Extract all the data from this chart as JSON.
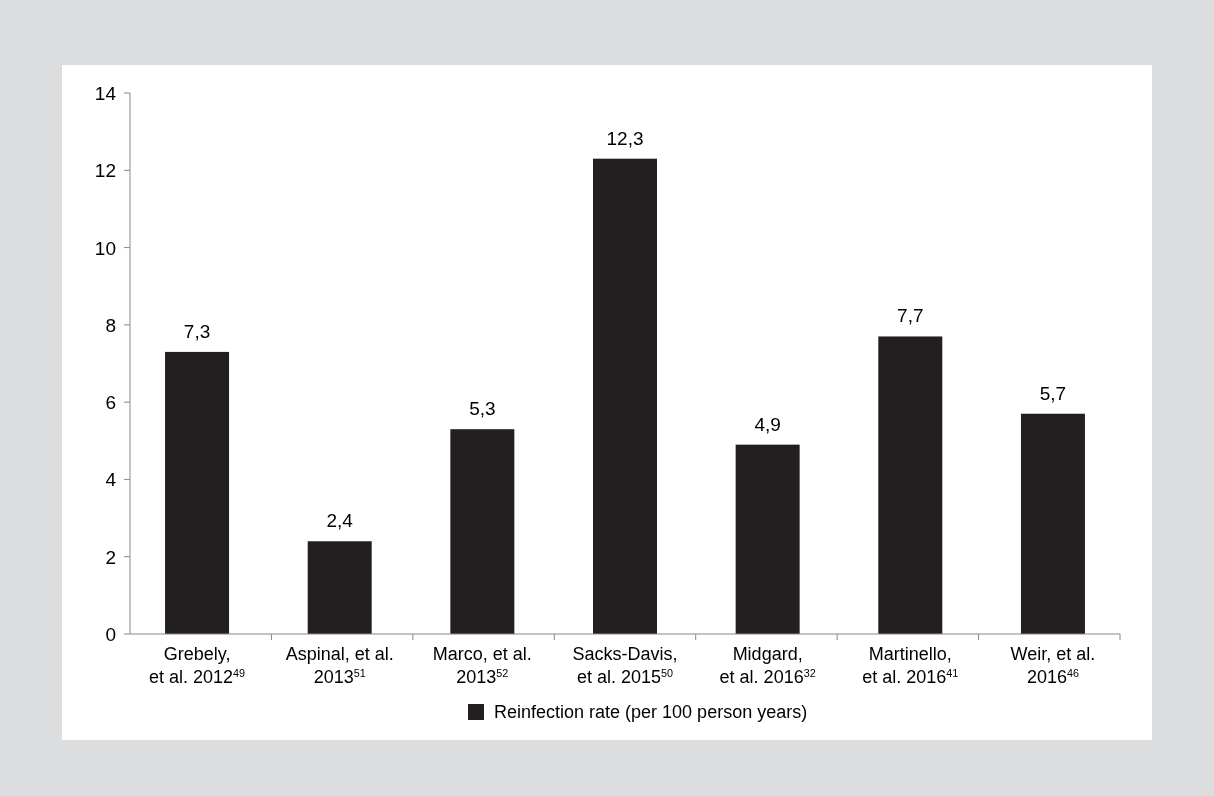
{
  "chart_data": {
    "type": "bar",
    "categories": [
      "Grebely,\net al. 2012$^{49}$",
      "Aspinal, et al.\n2013$^{51}$",
      "Marco, et al.\n2013$^{52}$",
      "Sacks-Davis,\net al. 2015$^{50}$",
      "Midgard,\net al. 2016$^{32}$",
      "Martinello,\net al. 2016$^{41}$",
      "Weir, et al.\n2016$^{46}$"
    ],
    "series": [
      {
        "name": "Reinfection rate (per 100 person years)",
        "color": "#231f20",
        "values": [
          7.3,
          2.4,
          5.3,
          12.3,
          4.9,
          7.7,
          5.7
        ],
        "value_labels": [
          "7,3",
          "2,4",
          "5,3",
          "12,3",
          "4,9",
          "7,7",
          "5,7"
        ]
      }
    ],
    "ylim": [
      0,
      14
    ],
    "yticks": [
      0,
      2,
      4,
      6,
      8,
      10,
      12,
      14
    ],
    "grid": false,
    "legend": "bottom"
  }
}
